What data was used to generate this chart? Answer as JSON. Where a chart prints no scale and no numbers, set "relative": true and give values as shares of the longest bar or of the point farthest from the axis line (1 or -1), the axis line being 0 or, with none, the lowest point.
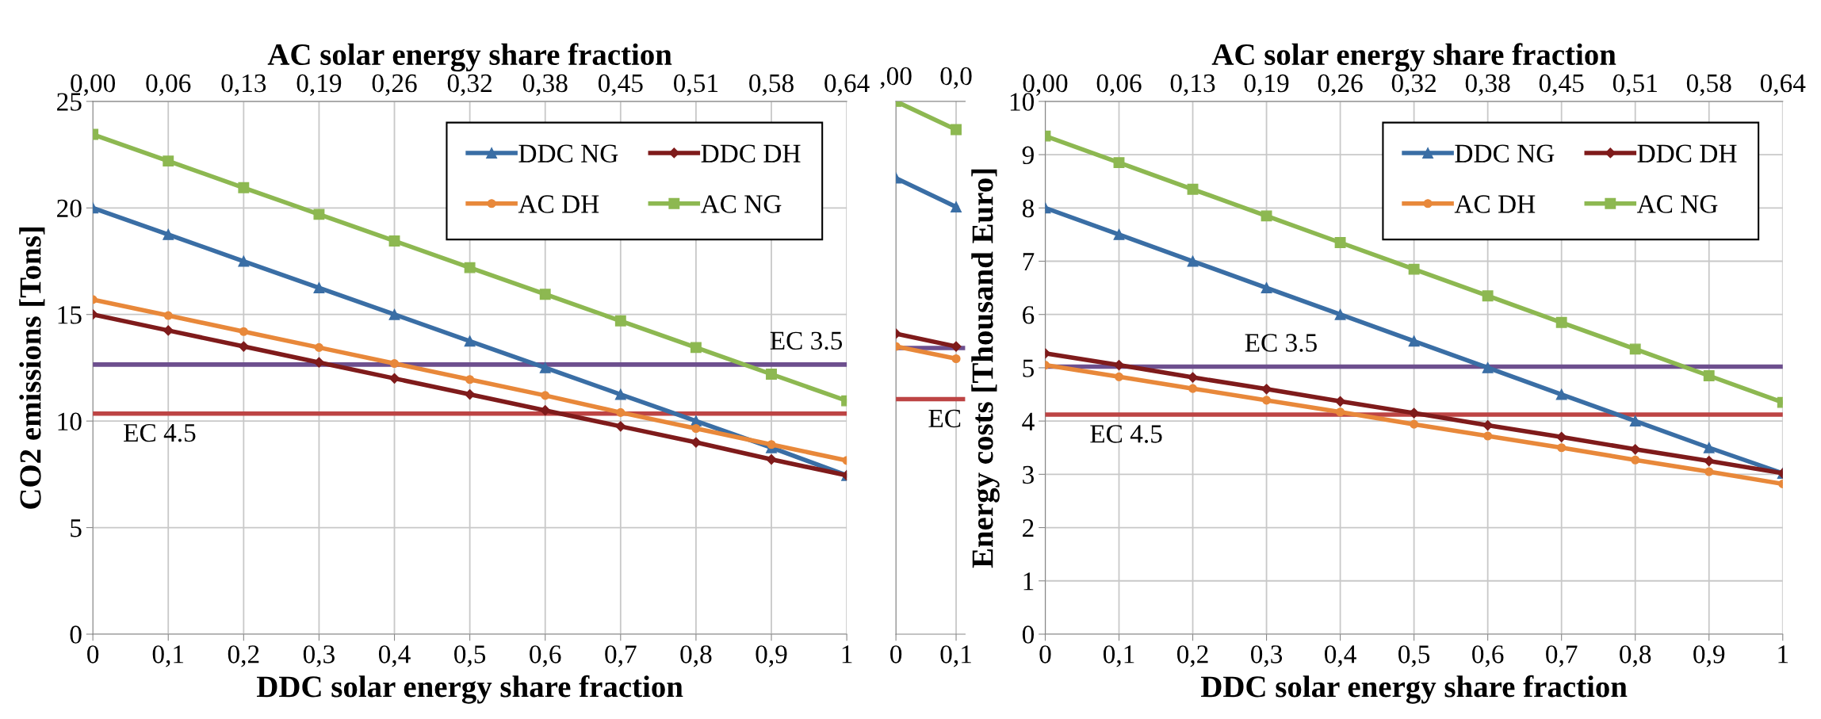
{
  "chart_data": [
    {
      "type": "line",
      "xlabel": "DDC solar energy share fraction",
      "x2label": "AC solar energy share fraction",
      "ylabel": "CO2 emissions [Tons]",
      "x": [
        0,
        0.1,
        0.2,
        0.3,
        0.4,
        0.5,
        0.6,
        0.7,
        0.8,
        0.9,
        1
      ],
      "xlim": [
        0,
        1
      ],
      "xticks": [
        0,
        {
          "value": 0.1,
          "label": "0,1"
        },
        {
          "value": 0.2,
          "label": "0,2"
        },
        {
          "value": 0.3,
          "label": "0,3"
        },
        {
          "value": 0.4,
          "label": "0,4"
        },
        {
          "value": 0.5,
          "label": "0,5"
        },
        {
          "value": 0.6,
          "label": "0,6"
        },
        {
          "value": 0.7,
          "label": "0,7"
        },
        {
          "value": 0.8,
          "label": "0,8"
        },
        {
          "value": 0.9,
          "label": "0,9"
        },
        1
      ],
      "x2lim": [
        0,
        0.64
      ],
      "x2ticks": [
        {
          "value": 0,
          "label": "0,00"
        },
        {
          "value": 0.064,
          "label": "0,06"
        },
        {
          "value": 0.128,
          "label": "0,13"
        },
        {
          "value": 0.192,
          "label": "0,19"
        },
        {
          "value": 0.256,
          "label": "0,26"
        },
        {
          "value": 0.32,
          "label": "0,32"
        },
        {
          "value": 0.384,
          "label": "0,38"
        },
        {
          "value": 0.448,
          "label": "0,45"
        },
        {
          "value": 0.512,
          "label": "0,51"
        },
        {
          "value": 0.576,
          "label": "0,58"
        },
        {
          "value": 0.64,
          "label": "0,64"
        }
      ],
      "ylim": [
        0,
        25
      ],
      "yticks": [
        0,
        5,
        10,
        15,
        20,
        25
      ],
      "grid": true,
      "legend": "top right",
      "series": [
        {
          "name": "DDC NG",
          "color": "#3a6ea5",
          "marker": "triangle",
          "values": [
            20,
            18.75,
            17.5,
            16.25,
            15,
            13.75,
            12.5,
            11.25,
            10,
            8.75,
            7.45
          ]
        },
        {
          "name": "DDC DH",
          "color": "#7f1b1b",
          "marker": "diamond",
          "values": [
            15,
            14.25,
            13.5,
            12.75,
            12,
            11.25,
            10.5,
            9.75,
            9,
            8.2,
            7.45
          ]
        },
        {
          "name": "AC DH",
          "color": "#e8883a",
          "marker": "circle",
          "values": [
            15.7,
            14.95,
            14.2,
            13.45,
            12.7,
            11.95,
            11.2,
            10.4,
            9.65,
            8.9,
            8.15
          ]
        },
        {
          "name": "AC NG",
          "color": "#8db851",
          "marker": "square",
          "values": [
            23.45,
            22.2,
            20.95,
            19.7,
            18.45,
            17.2,
            15.95,
            14.7,
            13.45,
            12.2,
            10.95
          ]
        }
      ],
      "ref_lines": [
        {
          "axis": "y",
          "value": 12.65,
          "label": "EC 3.5",
          "color": "#6d4f8e"
        },
        {
          "axis": "y",
          "value": 10.35,
          "label": "EC 4.5",
          "color": "#bd4444"
        }
      ]
    },
    {
      "type": "line",
      "relative": true,
      "x": [
        0,
        0.1
      ],
      "xlim": [
        0,
        0.115
      ],
      "xticks": [
        0,
        {
          "value": 0.1,
          "label": "0,1"
        }
      ],
      "annotations": [
        ",00",
        "0,0"
      ],
      "grid": "x",
      "tick_labels": "x",
      "series": [
        {
          "color": "#3a6ea5",
          "marker": "triangle",
          "values": [
            0.856,
            0.802
          ]
        },
        {
          "color": "#7f1b1b",
          "marker": "diamond",
          "values": [
            0.564,
            0.54
          ]
        },
        {
          "color": "#e8883a",
          "marker": "circle",
          "values": [
            0.54,
            0.517
          ]
        },
        {
          "color": "#8db851",
          "marker": "square",
          "values": [
            1,
            0.947
          ]
        }
      ],
      "ref_lines": [
        {
          "axis": "y",
          "value": 0.537,
          "color": "#6d4f8e"
        },
        {
          "axis": "y",
          "value": 0.441,
          "label": "EC",
          "color": "#bd4444"
        }
      ]
    },
    {
      "type": "line",
      "xlabel": "DDC solar energy share fraction",
      "x2label": "AC solar energy share fraction",
      "ylabel": "Energy costs [Thousand Euro]",
      "x": [
        0,
        0.1,
        0.2,
        0.3,
        0.4,
        0.5,
        0.6,
        0.7,
        0.8,
        0.9,
        1
      ],
      "xlim": [
        0,
        1
      ],
      "xticks": [
        0,
        {
          "value": 0.1,
          "label": "0,1"
        },
        {
          "value": 0.2,
          "label": "0,2"
        },
        {
          "value": 0.3,
          "label": "0,3"
        },
        {
          "value": 0.4,
          "label": "0,4"
        },
        {
          "value": 0.5,
          "label": "0,5"
        },
        {
          "value": 0.6,
          "label": "0,6"
        },
        {
          "value": 0.7,
          "label": "0,7"
        },
        {
          "value": 0.8,
          "label": "0,8"
        },
        {
          "value": 0.9,
          "label": "0,9"
        },
        1
      ],
      "x2lim": [
        0,
        0.64
      ],
      "x2ticks": [
        {
          "value": 0,
          "label": "0,00"
        },
        {
          "value": 0.064,
          "label": "0,06"
        },
        {
          "value": 0.128,
          "label": "0,13"
        },
        {
          "value": 0.192,
          "label": "0,19"
        },
        {
          "value": 0.256,
          "label": "0,26"
        },
        {
          "value": 0.32,
          "label": "0,32"
        },
        {
          "value": 0.384,
          "label": "0,38"
        },
        {
          "value": 0.448,
          "label": "0,45"
        },
        {
          "value": 0.512,
          "label": "0,51"
        },
        {
          "value": 0.576,
          "label": "0,58"
        },
        {
          "value": 0.64,
          "label": "0,64"
        }
      ],
      "ylim": [
        0,
        10
      ],
      "yticks": [
        0,
        1,
        2,
        3,
        4,
        5,
        6,
        7,
        8,
        9,
        10
      ],
      "grid": true,
      "legend": "top right",
      "series": [
        {
          "name": "DDC NG",
          "color": "#3a6ea5",
          "marker": "triangle",
          "values": [
            8,
            7.5,
            7,
            6.5,
            6,
            5.5,
            5,
            4.5,
            4,
            3.5,
            3.02
          ]
        },
        {
          "name": "DDC DH",
          "color": "#7f1b1b",
          "marker": "diamond",
          "values": [
            5.27,
            5.05,
            4.82,
            4.6,
            4.37,
            4.15,
            3.92,
            3.7,
            3.47,
            3.25,
            3.02
          ]
        },
        {
          "name": "AC DH",
          "color": "#e8883a",
          "marker": "circle",
          "values": [
            5.05,
            4.83,
            4.61,
            4.39,
            4.17,
            3.94,
            3.72,
            3.5,
            3.27,
            3.05,
            2.82
          ]
        },
        {
          "name": "AC NG",
          "color": "#8db851",
          "marker": "square",
          "values": [
            9.35,
            8.85,
            8.35,
            7.85,
            7.35,
            6.85,
            6.35,
            5.85,
            5.35,
            4.85,
            4.35
          ]
        }
      ],
      "ref_lines": [
        {
          "axis": "y",
          "value": 5.02,
          "label": "EC 3.5",
          "color": "#6d4f8e"
        },
        {
          "axis": "y",
          "value": 4.12,
          "label": "EC 4.5",
          "color": "#bd4444"
        }
      ]
    }
  ]
}
